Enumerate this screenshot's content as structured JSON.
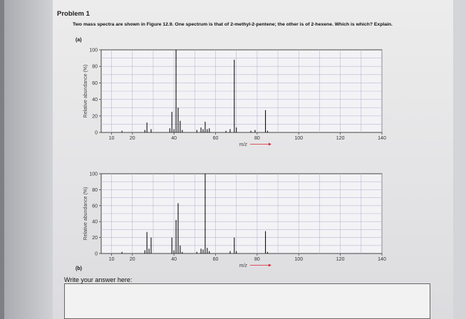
{
  "problem_title": "Problem 1",
  "question": "Two mass spectra are shown in Figure 12.9. One spectrum is that of 2-methyl-2-pentene; the other is of 2-hexene. Which is which? Explain.",
  "label_a": "(a)",
  "label_b": "(b)",
  "answer_prompt": "Write your answer here:",
  "chart_data": [
    {
      "type": "bar",
      "panel": "a",
      "ylabel": "Relative abundance (%)",
      "xlabel": "m/z",
      "xlim": [
        5,
        140
      ],
      "ylim": [
        0,
        100
      ],
      "x_ticks": [
        10,
        20,
        40,
        60,
        80,
        100,
        120,
        140
      ],
      "y_ticks": [
        0,
        20,
        40,
        60,
        80,
        100
      ],
      "grid": true,
      "peaks": [
        {
          "mz": 15,
          "y": 2
        },
        {
          "mz": 26,
          "y": 3
        },
        {
          "mz": 27,
          "y": 12
        },
        {
          "mz": 29,
          "y": 4
        },
        {
          "mz": 38,
          "y": 5
        },
        {
          "mz": 39,
          "y": 25
        },
        {
          "mz": 40,
          "y": 4
        },
        {
          "mz": 41,
          "y": 100
        },
        {
          "mz": 42,
          "y": 30
        },
        {
          "mz": 43,
          "y": 14
        },
        {
          "mz": 44,
          "y": 3
        },
        {
          "mz": 51,
          "y": 3
        },
        {
          "mz": 53,
          "y": 6
        },
        {
          "mz": 54,
          "y": 4
        },
        {
          "mz": 55,
          "y": 13
        },
        {
          "mz": 56,
          "y": 4
        },
        {
          "mz": 57,
          "y": 5
        },
        {
          "mz": 65,
          "y": 2
        },
        {
          "mz": 67,
          "y": 4
        },
        {
          "mz": 69,
          "y": 88
        },
        {
          "mz": 70,
          "y": 6
        },
        {
          "mz": 77,
          "y": 2
        },
        {
          "mz": 79,
          "y": 3
        },
        {
          "mz": 84,
          "y": 27
        },
        {
          "mz": 85,
          "y": 2
        }
      ]
    },
    {
      "type": "bar",
      "panel": "b",
      "ylabel": "Relative abundance (%)",
      "xlabel": "m/z",
      "xlim": [
        5,
        140
      ],
      "ylim": [
        0,
        100
      ],
      "x_ticks": [
        10,
        20,
        40,
        60,
        80,
        100,
        120,
        140
      ],
      "y_ticks": [
        0,
        20,
        40,
        60,
        80,
        100
      ],
      "grid": true,
      "peaks": [
        {
          "mz": 15,
          "y": 2
        },
        {
          "mz": 26,
          "y": 4
        },
        {
          "mz": 27,
          "y": 27
        },
        {
          "mz": 28,
          "y": 6
        },
        {
          "mz": 29,
          "y": 20
        },
        {
          "mz": 39,
          "y": 20
        },
        {
          "mz": 40,
          "y": 4
        },
        {
          "mz": 41,
          "y": 42
        },
        {
          "mz": 42,
          "y": 63
        },
        {
          "mz": 43,
          "y": 10
        },
        {
          "mz": 44,
          "y": 2
        },
        {
          "mz": 51,
          "y": 2
        },
        {
          "mz": 53,
          "y": 6
        },
        {
          "mz": 54,
          "y": 5
        },
        {
          "mz": 55,
          "y": 100
        },
        {
          "mz": 56,
          "y": 7
        },
        {
          "mz": 57,
          "y": 3
        },
        {
          "mz": 67,
          "y": 3
        },
        {
          "mz": 69,
          "y": 20
        },
        {
          "mz": 70,
          "y": 3
        },
        {
          "mz": 84,
          "y": 28
        },
        {
          "mz": 85,
          "y": 2
        }
      ]
    }
  ]
}
